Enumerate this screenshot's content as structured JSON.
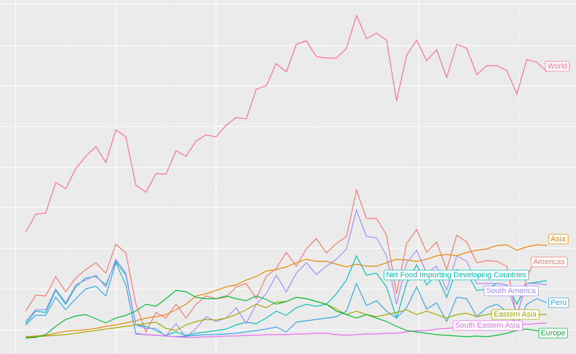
{
  "chart_data": {
    "type": "line",
    "ylim": [
      0,
      512
    ],
    "grid": true,
    "series": [
      {
        "name": "World",
        "color": "#FF6C91",
        "values": [
          176,
          202,
          204,
          248,
          239,
          268,
          286,
          300,
          277,
          324,
          314,
          244,
          234,
          261,
          260,
          294,
          286,
          308,
          317,
          314,
          331,
          342,
          340,
          383,
          388,
          420,
          408,
          448,
          453,
          430,
          428,
          428,
          442,
          490,
          456,
          464,
          454,
          366,
          432,
          454,
          424,
          440,
          400,
          448,
          442,
          404,
          417,
          417,
          410,
          376,
          426,
          422,
          408
        ]
      },
      {
        "name": "Asia",
        "color": "#E58700",
        "values": [
          25,
          26,
          27,
          30,
          33,
          34,
          35,
          37,
          40,
          42,
          45,
          48,
          52,
          54,
          57,
          64,
          72,
          84,
          87,
          92,
          97,
          100,
          107,
          112,
          120,
          122,
          126,
          132,
          137,
          134,
          134,
          130,
          126,
          130,
          127,
          127,
          132,
          137,
          136,
          134,
          137,
          142,
          144,
          142,
          147,
          150,
          152,
          157,
          158,
          150,
          155,
          158,
          157
        ]
      },
      {
        "name": "Americas",
        "color": "#F8766D",
        "values": [
          62,
          85,
          84,
          112,
          90,
          110,
          122,
          132,
          117,
          159,
          146,
          72,
          32,
          60,
          52,
          72,
          52,
          72,
          84,
          80,
          82,
          97,
          102,
          80,
          112,
          124,
          147,
          127,
          152,
          167,
          146,
          160,
          170,
          237,
          196,
          196,
          172,
          87,
          160,
          180,
          147,
          162,
          122,
          172,
          162,
          132,
          135,
          134,
          127,
          52,
          112,
          140,
          127
        ]
      },
      {
        "name": "Net Food Importing Developing Countries",
        "color": "#00BFB8",
        "values": [
          44,
          62,
          60,
          92,
          72,
          97,
          110,
          112,
          100,
          134,
          114,
          42,
          40,
          34,
          27,
          32,
          27,
          30,
          32,
          34,
          36,
          42,
          46,
          44,
          52,
          62,
          56,
          67,
          72,
          69,
          72,
          87,
          107,
          142,
          114,
          117,
          97,
          52,
          102,
          129,
          100,
          114,
          82,
          122,
          117,
          92,
          94,
          102,
          100,
          72,
          102,
          104,
          106
        ]
      },
      {
        "name": "South America",
        "color": "#A58AFF",
        "values": [
          47,
          64,
          64,
          94,
          74,
          100,
          107,
          114,
          97,
          137,
          117,
          42,
          37,
          37,
          26,
          44,
          24,
          37,
          54,
          47,
          52,
          67,
          44,
          72,
          87,
          114,
          90,
          117,
          132,
          115,
          127,
          137,
          152,
          208,
          170,
          168,
          142,
          72,
          132,
          150,
          117,
          127,
          92,
          142,
          134,
          102,
          102,
          102,
          100,
          57,
          102,
          102,
          100
        ]
      },
      {
        "name": "Peru",
        "color": "#35A2E6",
        "values": [
          42,
          56,
          56,
          82,
          64,
          80,
          94,
          98,
          84,
          132,
          100,
          29,
          28,
          27,
          26,
          25,
          26,
          27,
          28,
          28,
          29,
          30,
          32,
          34,
          36,
          39,
          32,
          46,
          48,
          50,
          52,
          54,
          62,
          102,
          70,
          77,
          62,
          52,
          67,
          97,
          65,
          74,
          47,
          82,
          80,
          54,
          67,
          72,
          62,
          42,
          72,
          80,
          74
        ]
      },
      {
        "name": "Eastern Asia",
        "color": "#A3A500",
        "values": [
          24,
          25,
          26,
          27,
          28,
          30,
          32,
          34,
          36,
          38,
          40,
          42,
          44,
          46,
          37,
          34,
          42,
          47,
          50,
          49,
          52,
          57,
          64,
          72,
          67,
          75,
          76,
          82,
          80,
          76,
          72,
          65,
          57,
          62,
          57,
          54,
          57,
          60,
          64,
          57,
          62,
          57,
          52,
          57,
          59,
          54,
          57,
          60,
          57,
          57,
          57,
          57,
          57
        ]
      },
      {
        "name": "South Eastern Asia",
        "color": "#E76BF3",
        "values": [
          null,
          null,
          null,
          null,
          null,
          null,
          null,
          null,
          null,
          null,
          null,
          30,
          28,
          27,
          26,
          25,
          24,
          24,
          25,
          25,
          26,
          26,
          27,
          27,
          28,
          28,
          28,
          29,
          29,
          30,
          30,
          28,
          27,
          28,
          29,
          29,
          30,
          30,
          32,
          34,
          34,
          36,
          37,
          38,
          39,
          40,
          40,
          41,
          42,
          43,
          43,
          44,
          45
        ]
      },
      {
        "name": "Europe",
        "color": "#00BA38",
        "values": [
          23,
          24,
          28,
          40,
          50,
          55,
          57,
          51,
          45,
          52,
          56,
          62,
          72,
          69,
          80,
          92,
          90,
          82,
          80,
          80,
          84,
          80,
          77,
          84,
          79,
          72,
          76,
          82,
          80,
          76,
          72,
          62,
          57,
          52,
          57,
          52,
          47,
          40,
          34,
          32,
          30,
          28,
          27,
          26,
          25,
          26,
          25,
          27,
          30,
          34,
          36,
          34,
          32
        ]
      }
    ]
  }
}
